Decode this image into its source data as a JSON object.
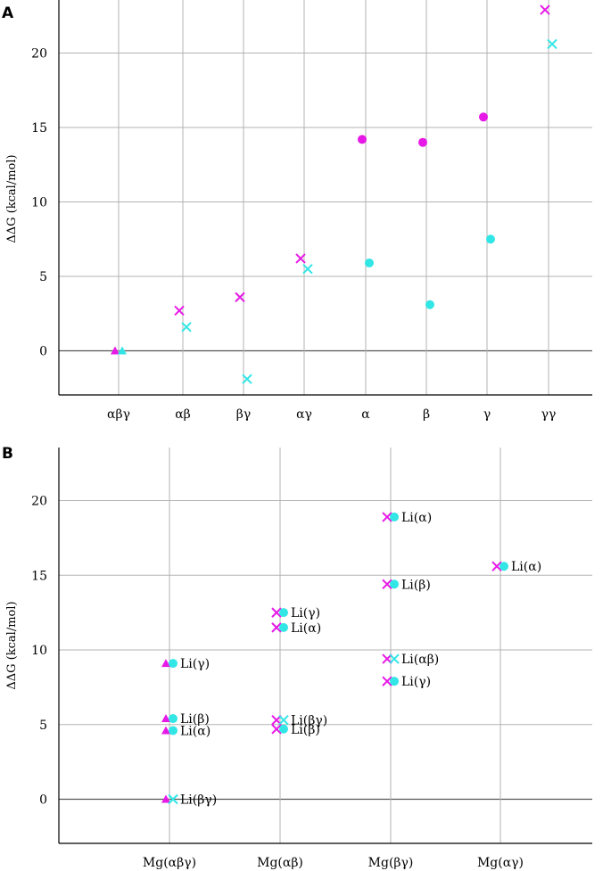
{
  "colors": {
    "magenta": "#e619e6",
    "cyan": "#33e6e6",
    "grid": "#b3b3b3",
    "axis": "#000000",
    "zero": "#555555"
  },
  "chart_data": [
    {
      "type": "scatter",
      "panel": "A",
      "ylabel": "ΔΔG (kcal/mol)",
      "ylim": [
        -3,
        23.5
      ],
      "yticks": [
        "0",
        "5",
        "10",
        "15",
        "20"
      ],
      "ytick_values": [
        0,
        5,
        10,
        15,
        20
      ],
      "categories": [
        "αβγ",
        "αβ",
        "βγ",
        "αγ",
        "α",
        "β",
        "γ",
        "γγ"
      ],
      "grid": true,
      "points": [
        {
          "cat": 0,
          "y": 0,
          "marker": "triangle",
          "color": "magenta",
          "label": ""
        },
        {
          "cat": 0,
          "y": 0,
          "marker": "triangle",
          "color": "cyan",
          "label": ""
        },
        {
          "cat": 1,
          "y": 2.7,
          "marker": "x",
          "color": "magenta",
          "label": ""
        },
        {
          "cat": 1,
          "y": 1.6,
          "marker": "x",
          "color": "cyan",
          "label": ""
        },
        {
          "cat": 2,
          "y": 3.6,
          "marker": "x",
          "color": "magenta",
          "label": ""
        },
        {
          "cat": 2,
          "y": -1.9,
          "marker": "x",
          "color": "cyan",
          "label": ""
        },
        {
          "cat": 3,
          "y": 6.2,
          "marker": "x",
          "color": "magenta",
          "label": ""
        },
        {
          "cat": 3,
          "y": 5.5,
          "marker": "x",
          "color": "cyan",
          "label": ""
        },
        {
          "cat": 4,
          "y": 14.2,
          "marker": "circle",
          "color": "magenta",
          "label": ""
        },
        {
          "cat": 4,
          "y": 5.9,
          "marker": "circle",
          "color": "cyan",
          "label": ""
        },
        {
          "cat": 5,
          "y": 14.0,
          "marker": "circle",
          "color": "magenta",
          "label": ""
        },
        {
          "cat": 5,
          "y": 3.1,
          "marker": "circle",
          "color": "cyan",
          "label": ""
        },
        {
          "cat": 6,
          "y": 15.7,
          "marker": "circle",
          "color": "magenta",
          "label": ""
        },
        {
          "cat": 6,
          "y": 7.5,
          "marker": "circle",
          "color": "cyan",
          "label": ""
        },
        {
          "cat": 7,
          "y": 22.9,
          "marker": "x",
          "color": "magenta",
          "label": ""
        },
        {
          "cat": 7,
          "y": 20.6,
          "marker": "x",
          "color": "cyan",
          "label": ""
        }
      ]
    },
    {
      "type": "scatter",
      "panel": "B",
      "ylabel": "ΔΔG (kcal/mol)",
      "ylim": [
        -3,
        23.5
      ],
      "yticks": [
        "0",
        "5",
        "10",
        "15",
        "20"
      ],
      "ytick_values": [
        0,
        5,
        10,
        15,
        20
      ],
      "categories": [
        "Mg(αβγ)",
        "Mg(αβ)",
        "Mg(βγ)",
        "Mg(αγ)"
      ],
      "grid": true,
      "points": [
        {
          "cat": 0,
          "y": 9.1,
          "marker": "triangle",
          "color": "magenta",
          "label": ""
        },
        {
          "cat": 0,
          "y": 9.1,
          "marker": "circle",
          "color": "cyan",
          "label": "Li(γ)"
        },
        {
          "cat": 0,
          "y": 5.4,
          "marker": "triangle",
          "color": "magenta",
          "label": ""
        },
        {
          "cat": 0,
          "y": 5.4,
          "marker": "circle",
          "color": "cyan",
          "label": "Li(β)"
        },
        {
          "cat": 0,
          "y": 4.6,
          "marker": "triangle",
          "color": "magenta",
          "label": ""
        },
        {
          "cat": 0,
          "y": 4.6,
          "marker": "circle",
          "color": "cyan",
          "label": "Li(α)"
        },
        {
          "cat": 0,
          "y": 0,
          "marker": "triangle",
          "color": "magenta",
          "label": ""
        },
        {
          "cat": 0,
          "y": 0,
          "marker": "x",
          "color": "cyan",
          "label": "Li(βγ)"
        },
        {
          "cat": 1,
          "y": 12.5,
          "marker": "x",
          "color": "magenta",
          "label": ""
        },
        {
          "cat": 1,
          "y": 12.5,
          "marker": "circle",
          "color": "cyan",
          "label": "Li(γ)"
        },
        {
          "cat": 1,
          "y": 11.5,
          "marker": "x",
          "color": "magenta",
          "label": ""
        },
        {
          "cat": 1,
          "y": 11.5,
          "marker": "circle",
          "color": "cyan",
          "label": "Li(α)"
        },
        {
          "cat": 1,
          "y": 5.3,
          "marker": "x",
          "color": "magenta",
          "label": ""
        },
        {
          "cat": 1,
          "y": 5.3,
          "marker": "x",
          "color": "cyan",
          "label": "Li(βγ)"
        },
        {
          "cat": 1,
          "y": 4.7,
          "marker": "x",
          "color": "magenta",
          "label": ""
        },
        {
          "cat": 1,
          "y": 4.7,
          "marker": "circle",
          "color": "cyan",
          "label": "Li(β)"
        },
        {
          "cat": 2,
          "y": 18.9,
          "marker": "x",
          "color": "magenta",
          "label": ""
        },
        {
          "cat": 2,
          "y": 18.9,
          "marker": "circle",
          "color": "cyan",
          "label": "Li(α)"
        },
        {
          "cat": 2,
          "y": 14.4,
          "marker": "x",
          "color": "magenta",
          "label": ""
        },
        {
          "cat": 2,
          "y": 14.4,
          "marker": "circle",
          "color": "cyan",
          "label": "Li(β)"
        },
        {
          "cat": 2,
          "y": 9.4,
          "marker": "x",
          "color": "magenta",
          "label": ""
        },
        {
          "cat": 2,
          "y": 9.4,
          "marker": "x",
          "color": "cyan",
          "label": "Li(αβ)"
        },
        {
          "cat": 2,
          "y": 7.9,
          "marker": "x",
          "color": "magenta",
          "label": ""
        },
        {
          "cat": 2,
          "y": 7.9,
          "marker": "circle",
          "color": "cyan",
          "label": "Li(γ)"
        },
        {
          "cat": 3,
          "y": 15.6,
          "marker": "x",
          "color": "magenta",
          "label": ""
        },
        {
          "cat": 3,
          "y": 15.6,
          "marker": "circle",
          "color": "cyan",
          "label": "Li(α)"
        }
      ]
    }
  ]
}
